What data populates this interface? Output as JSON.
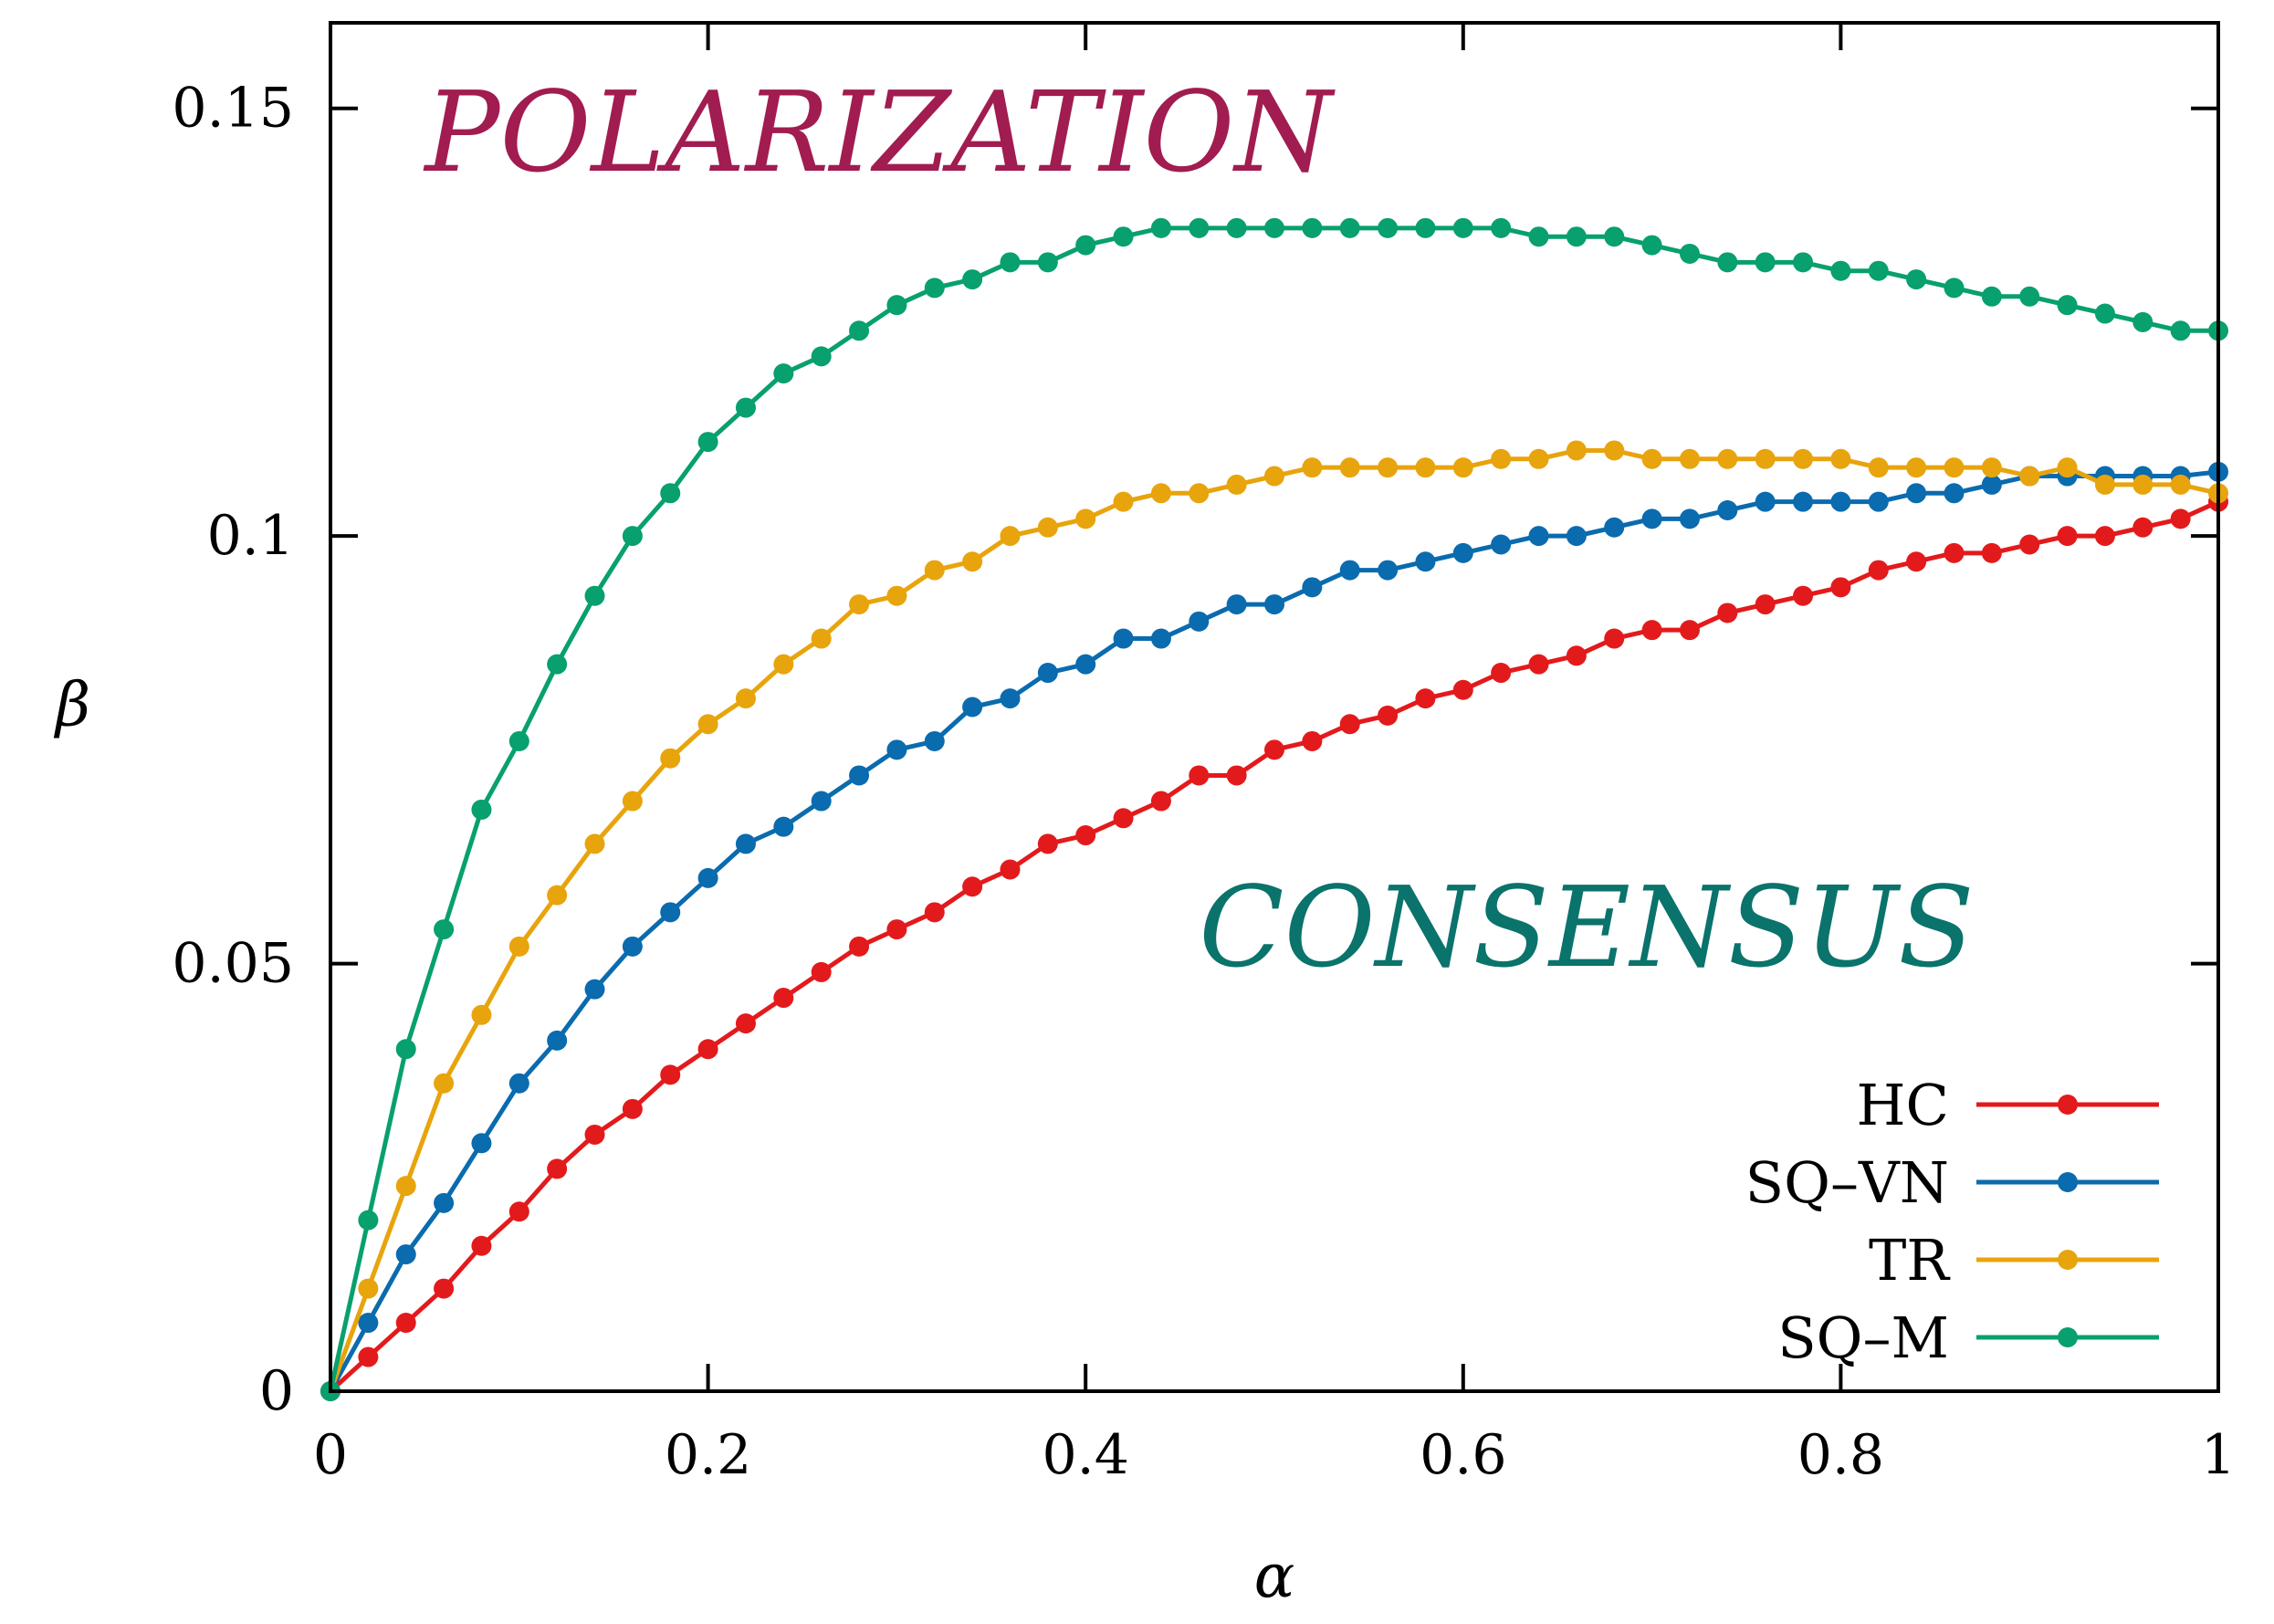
{
  "chart_data": {
    "type": "line",
    "xlabel": "α",
    "ylabel": "β",
    "xlim": [
      0,
      1
    ],
    "ylim": [
      0,
      0.16
    ],
    "xticks": [
      0,
      0.2,
      0.4,
      0.6,
      0.8,
      1
    ],
    "xtick_labels": [
      "0",
      "0.2",
      "0.4",
      "0.6",
      "0.8",
      "1"
    ],
    "yticks": [
      0,
      0.05,
      0.1,
      0.15
    ],
    "ytick_labels": [
      "0",
      "0.05",
      "0.1",
      "0.15"
    ],
    "grid": false,
    "legend_position": "bottom-right",
    "annotations": [
      {
        "text": "POLARIZATION",
        "color": "#a11c50",
        "x": 0.05,
        "y": 0.147
      },
      {
        "text": "CONSENSUS",
        "color": "#0a736b",
        "x": 0.46,
        "y": 0.054
      }
    ],
    "x": [
      0,
      0.02,
      0.04,
      0.06,
      0.08,
      0.1,
      0.12,
      0.14,
      0.16,
      0.18,
      0.2,
      0.22,
      0.24,
      0.26,
      0.28,
      0.3,
      0.32,
      0.34,
      0.36,
      0.38,
      0.4,
      0.42,
      0.44,
      0.46,
      0.48,
      0.5,
      0.52,
      0.54,
      0.56,
      0.58,
      0.6,
      0.62,
      0.64,
      0.66,
      0.68,
      0.7,
      0.72,
      0.74,
      0.76,
      0.78,
      0.8,
      0.82,
      0.84,
      0.86,
      0.88,
      0.9,
      0.92,
      0.94,
      0.96,
      0.98,
      1.0
    ],
    "series": [
      {
        "name": "HC",
        "color": "#e31a1c",
        "values": [
          0,
          0.004,
          0.008,
          0.012,
          0.017,
          0.021,
          0.026,
          0.03,
          0.033,
          0.037,
          0.04,
          0.043,
          0.046,
          0.049,
          0.052,
          0.054,
          0.056,
          0.059,
          0.061,
          0.064,
          0.065,
          0.067,
          0.069,
          0.072,
          0.072,
          0.075,
          0.076,
          0.078,
          0.079,
          0.081,
          0.082,
          0.084,
          0.085,
          0.086,
          0.088,
          0.089,
          0.089,
          0.091,
          0.092,
          0.093,
          0.094,
          0.096,
          0.097,
          0.098,
          0.098,
          0.099,
          0.1,
          0.1,
          0.101,
          0.102,
          0.104
        ]
      },
      {
        "name": "SQ–VN",
        "color": "#0a6bae",
        "values": [
          0,
          0.008,
          0.016,
          0.022,
          0.029,
          0.036,
          0.041,
          0.047,
          0.052,
          0.056,
          0.06,
          0.064,
          0.066,
          0.069,
          0.072,
          0.075,
          0.076,
          0.08,
          0.081,
          0.084,
          0.085,
          0.088,
          0.088,
          0.09,
          0.092,
          0.092,
          0.094,
          0.096,
          0.096,
          0.097,
          0.098,
          0.099,
          0.1,
          0.1,
          0.101,
          0.102,
          0.102,
          0.103,
          0.104,
          0.104,
          0.104,
          0.104,
          0.105,
          0.105,
          0.106,
          0.107,
          0.107,
          0.107,
          0.107,
          0.107,
          0.1075
        ]
      },
      {
        "name": "TR",
        "color": "#e8a40c",
        "values": [
          0,
          0.012,
          0.024,
          0.036,
          0.044,
          0.052,
          0.058,
          0.064,
          0.069,
          0.074,
          0.078,
          0.081,
          0.085,
          0.088,
          0.092,
          0.093,
          0.096,
          0.097,
          0.1,
          0.101,
          0.102,
          0.104,
          0.105,
          0.105,
          0.106,
          0.107,
          0.108,
          0.108,
          0.108,
          0.108,
          0.108,
          0.109,
          0.109,
          0.11,
          0.11,
          0.109,
          0.109,
          0.109,
          0.109,
          0.109,
          0.109,
          0.108,
          0.108,
          0.108,
          0.108,
          0.107,
          0.108,
          0.106,
          0.106,
          0.106,
          0.105
        ]
      },
      {
        "name": "SQ–M",
        "color": "#07a06e",
        "values": [
          0,
          0.02,
          0.04,
          0.054,
          0.068,
          0.076,
          0.085,
          0.093,
          0.1,
          0.105,
          0.111,
          0.115,
          0.119,
          0.121,
          0.124,
          0.127,
          0.129,
          0.13,
          0.132,
          0.132,
          0.134,
          0.135,
          0.136,
          0.136,
          0.136,
          0.136,
          0.136,
          0.136,
          0.136,
          0.136,
          0.136,
          0.136,
          0.135,
          0.135,
          0.135,
          0.134,
          0.133,
          0.132,
          0.132,
          0.132,
          0.131,
          0.131,
          0.13,
          0.129,
          0.128,
          0.128,
          0.127,
          0.126,
          0.125,
          0.124,
          0.124
        ]
      }
    ]
  }
}
